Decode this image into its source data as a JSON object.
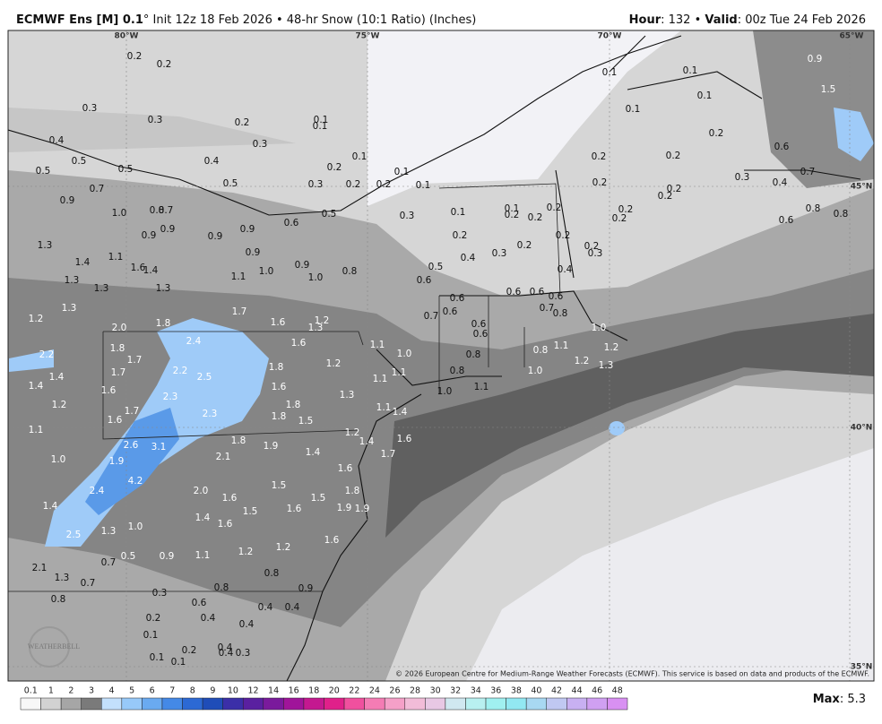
{
  "header": {
    "title_bold": "ECMWF Ens [M] 0.1",
    "title_rest": "° Init 12z 18 Feb 2026 • 48-hr Snow (10:1 Ratio) (Inches)",
    "hour_key": "Hour",
    "hour_value": ": 132 • ",
    "valid_key": "Valid",
    "valid_value": ": 00z Tue 24 Feb 2026"
  },
  "grid_labels": [
    "80°W",
    "75°W",
    "70°W",
    "65°W",
    "45°N",
    "40°N",
    "35°N"
  ],
  "map_labels": [
    "0.2",
    "0.2",
    "0.3",
    "0.3",
    "0.2",
    "0.1",
    "0.1",
    "0.3",
    "0.4",
    "0.2",
    "0.1",
    "0.5",
    "0.3",
    "0.2",
    "0.2",
    "0.1",
    "0.1",
    "0.4",
    "0.5",
    "0.5",
    "0.5",
    "0.7",
    "0.9",
    "0.7",
    "0.8",
    "1.0",
    "0.9",
    "0.9",
    "0.9",
    "0.9",
    "0.9",
    "0.6",
    "0.5",
    "0.3",
    "0.1",
    "0.2",
    "0.4",
    "0.5",
    "0.6",
    "0.9",
    "1.0",
    "0.8",
    "1.0",
    "1.1",
    "1.3",
    "1.1",
    "1.4",
    "1.6",
    "1.4",
    "1.3",
    "1.3",
    "1.3",
    "1.7",
    "1.6",
    "1.3",
    "1.2",
    "1.6",
    "1.2",
    "1.3",
    "2.0",
    "1.8",
    "1.8",
    "1.7",
    "2.2",
    "2.4",
    "1.8",
    "1.2",
    "1.1",
    "1.0",
    "0.7",
    "0.6",
    "0.6",
    "0.6",
    "0.6",
    "0.6",
    "0.6",
    "0.6",
    "0.7",
    "0.8",
    "0.8",
    "0.8",
    "1.0",
    "1.1",
    "1.1",
    "1.0",
    "1.1",
    "0.8",
    "1.1",
    "1.0",
    "1.2",
    "1.2",
    "1.3",
    "1.7",
    "1.4",
    "1.4",
    "1.6",
    "2.2",
    "2.5",
    "2.3",
    "1.6",
    "1.3",
    "1.2",
    "1.7",
    "2.3",
    "1.8",
    "1.8",
    "1.5",
    "1.1",
    "1.4",
    "1.6",
    "1.1",
    "2.6",
    "3.1",
    "1.8",
    "1.9",
    "1.4",
    "1.2",
    "1.4",
    "1.6",
    "1.7",
    "1.0",
    "1.9",
    "2.1",
    "4.2",
    "2.4",
    "2.0",
    "1.5",
    "1.6",
    "1.8",
    "1.4",
    "1.6",
    "1.5",
    "1.6",
    "1.9",
    "1.9",
    "1.5",
    "1.4",
    "1.6",
    "1.0",
    "1.3",
    "2.5",
    "1.6",
    "1.2",
    "1.2",
    "0.5",
    "0.9",
    "1.1",
    "0.7",
    "2.1",
    "0.8",
    "1.3",
    "0.7",
    "0.8",
    "0.9",
    "0.3",
    "0.8",
    "0.6",
    "0.4",
    "0.4",
    "0.2",
    "0.4",
    "0.4",
    "0.1",
    "0.2",
    "0.4",
    "0.4",
    "0.3",
    "0.1",
    "0.1",
    "0.1",
    "0.1",
    "0.1",
    "0.9",
    "1.5",
    "0.1",
    "0.2",
    "0.2",
    "0.2",
    "0.6",
    "0.7",
    "0.3",
    "0.4",
    "0.2",
    "0.2",
    "0.2",
    "0.1",
    "0.2",
    "0.2",
    "0.2",
    "0.2",
    "0.2",
    "0.2",
    "0.2",
    "0.3",
    "0.2",
    "0.3",
    "0.4",
    "0.8",
    "0.8",
    "0.6"
  ],
  "colorbar": {
    "labels": [
      "0.1",
      "1",
      "2",
      "3",
      "4",
      "5",
      "6",
      "7",
      "8",
      "9",
      "10",
      "12",
      "14",
      "16",
      "18",
      "20",
      "22",
      "24",
      "26",
      "28",
      "30",
      "32",
      "34",
      "36",
      "38",
      "40",
      "42",
      "44",
      "46",
      "48"
    ],
    "colors": [
      "#f7f7f7",
      "#d2d2d2",
      "#a6a6a6",
      "#7a7a7a",
      "#c3e0fc",
      "#97c9f9",
      "#6aaaf0",
      "#4489e6",
      "#2c69d4",
      "#1f4db8",
      "#3b2fa8",
      "#5a20a0",
      "#7a1a9c",
      "#a0149a",
      "#c41890",
      "#e0208a",
      "#f0509e",
      "#f47cb4",
      "#f5a0c8",
      "#f2bcd8",
      "#e8c8e4",
      "#d0e8f0",
      "#b8f0f0",
      "#a0f0f0",
      "#92e8f2",
      "#a8d8f2",
      "#c0c8f2",
      "#c8b0f2",
      "#d0a0f2",
      "#d890f2"
    ]
  },
  "max": {
    "key": "Max",
    "value": ": 5.3"
  },
  "copyright": "© 2026 European Centre for Medium-Range Weather Forecasts (ECMWF). This service is based on data and products of the ECMWF.",
  "logo": "WEATHERBELL"
}
